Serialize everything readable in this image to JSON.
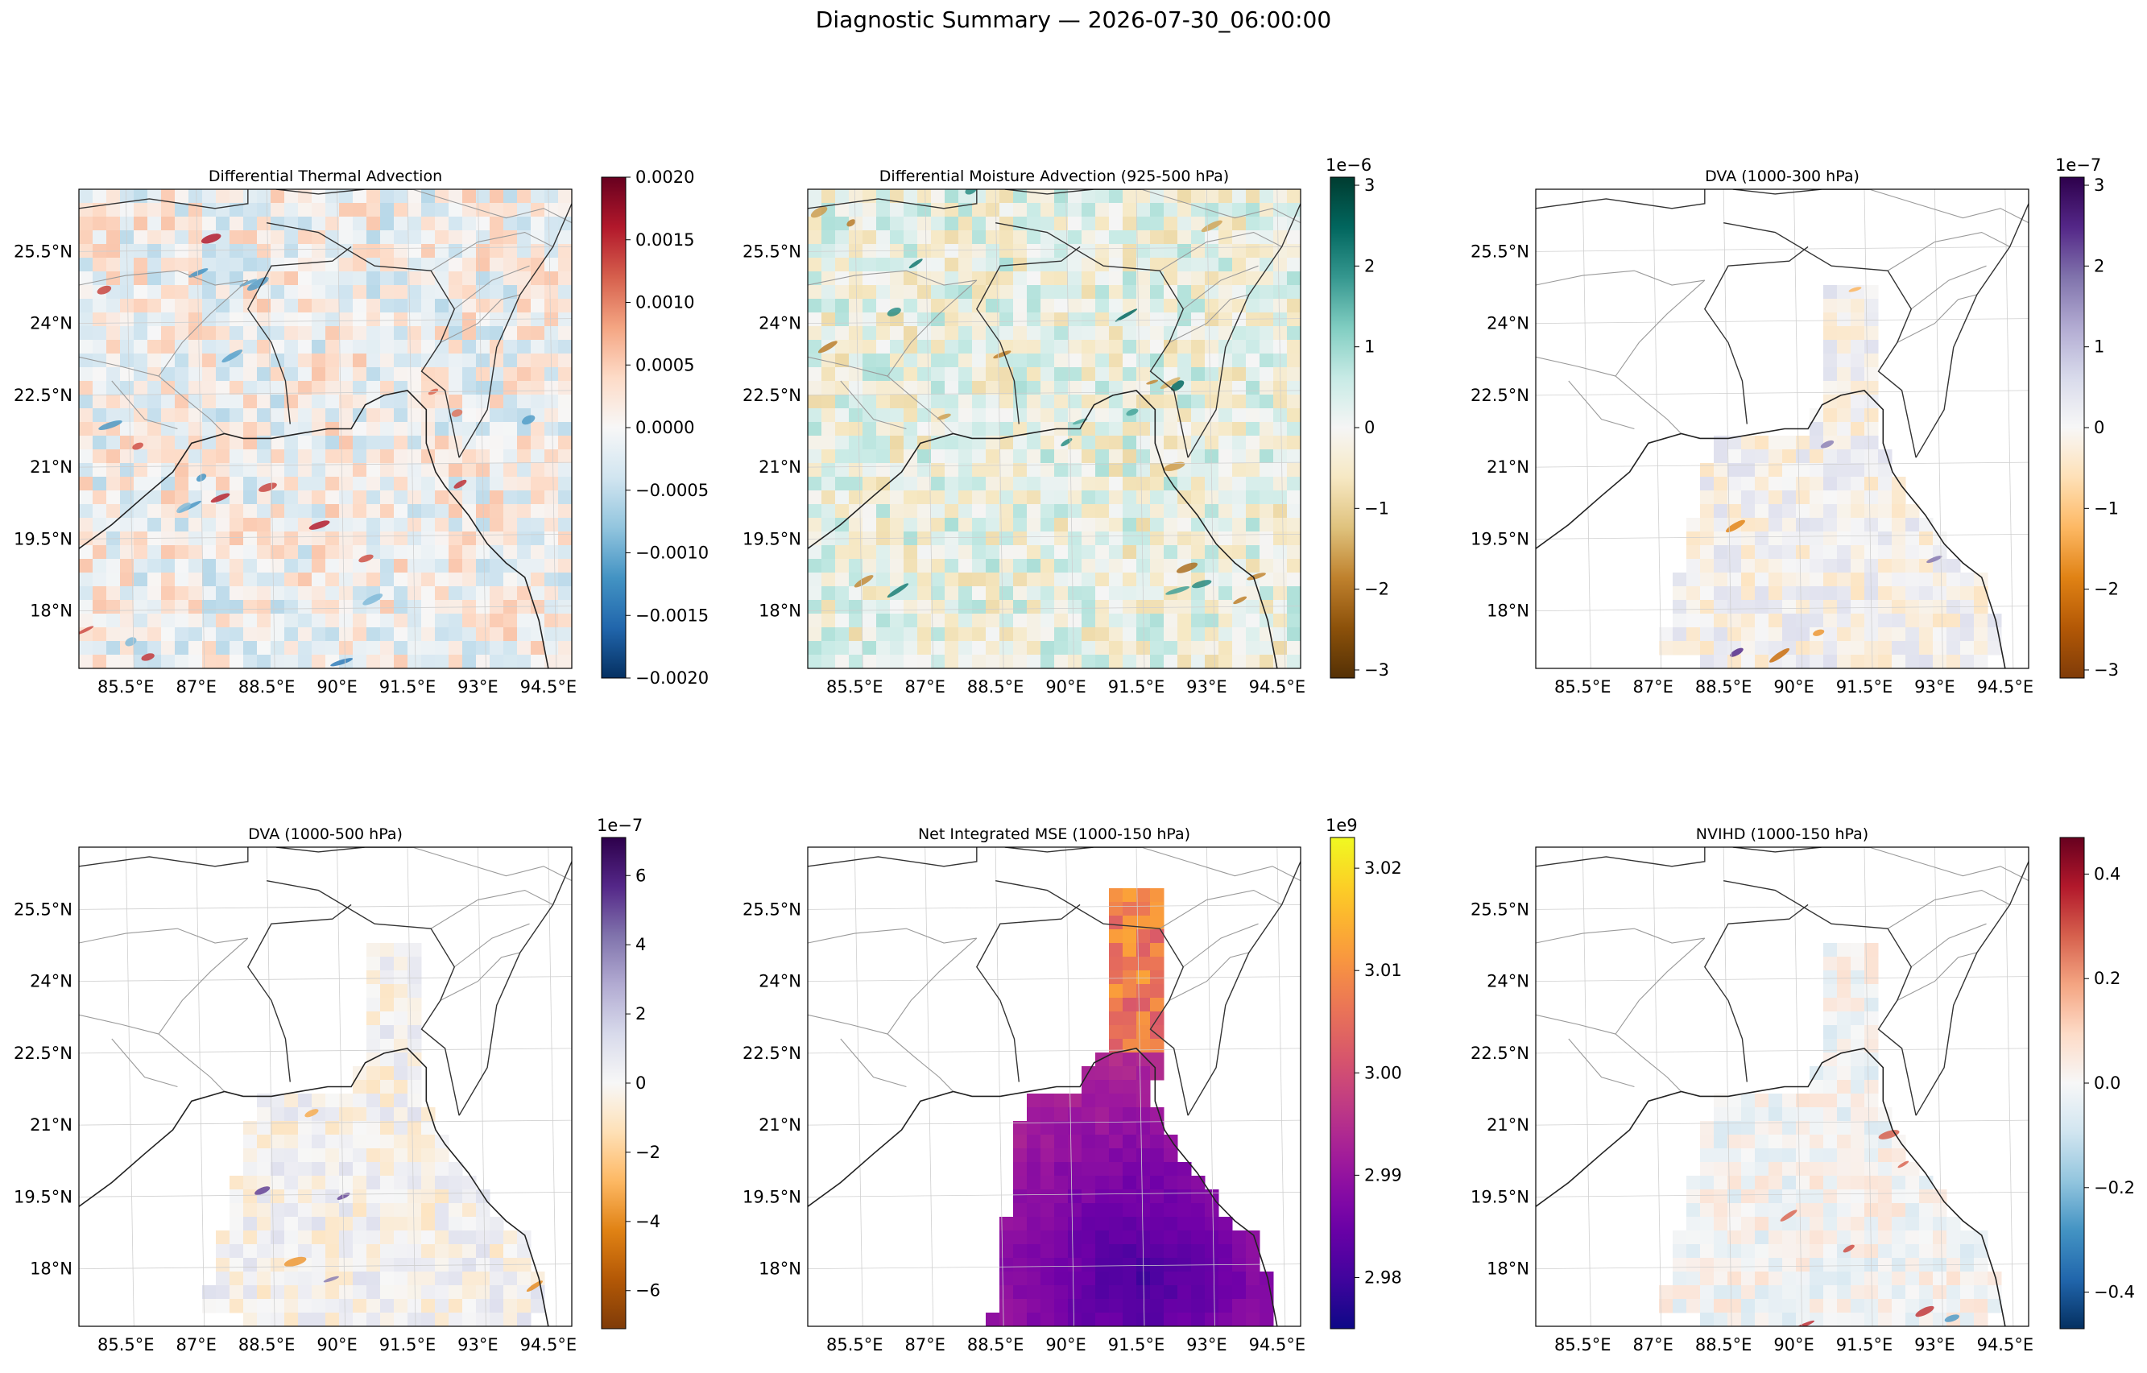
{
  "figure": {
    "title": "Diagnostic Summary — 2026-07-30_06:00:00"
  },
  "chart_data": [
    {
      "type": "heatmap",
      "title": "Differential Thermal Advection",
      "x_ticks": [
        "85.5°E",
        "87°E",
        "88.5°E",
        "90°E",
        "91.5°E",
        "93°E",
        "94.5°E"
      ],
      "y_ticks": [
        "25.5°N",
        "24°N",
        "22.5°N",
        "21°N",
        "19.5°N",
        "18°N"
      ],
      "extent": {
        "lon": [
          84.5,
          95.0
        ],
        "lat": [
          16.8,
          26.8
        ]
      },
      "colormap": "RdBu_r",
      "colorbar": {
        "range": [
          -0.002,
          0.002
        ],
        "multiplier": "",
        "ticks": [
          "0.0020",
          "0.0015",
          "0.0010",
          "0.0005",
          "0.0000",
          "−0.0005",
          "−0.0010",
          "−0.0015",
          "−0.0020"
        ],
        "tick_values": [
          0.002,
          0.0015,
          0.001,
          0.0005,
          0,
          -0.0005,
          -0.001,
          -0.0015,
          -0.002
        ]
      },
      "coverage": "full"
    },
    {
      "type": "heatmap",
      "title": "Differential Moisture Advection (925-500 hPa)",
      "x_ticks": [
        "85.5°E",
        "87°E",
        "88.5°E",
        "90°E",
        "91.5°E",
        "93°E",
        "94.5°E"
      ],
      "y_ticks": [
        "25.5°N",
        "24°N",
        "22.5°N",
        "21°N",
        "19.5°N",
        "18°N"
      ],
      "extent": {
        "lon": [
          84.5,
          95.0
        ],
        "lat": [
          16.8,
          26.8
        ]
      },
      "colormap": "BrBG",
      "colorbar": {
        "range": [
          -3.1,
          3.1
        ],
        "multiplier": "1e−6",
        "ticks": [
          "3",
          "2",
          "1",
          "0",
          "−1",
          "−2",
          "−3"
        ],
        "tick_values": [
          3,
          2,
          1,
          0,
          -1,
          -2,
          -3
        ]
      },
      "coverage": "full"
    },
    {
      "type": "heatmap",
      "title": "DVA (1000-300 hPa)",
      "x_ticks": [
        "85.5°E",
        "87°E",
        "88.5°E",
        "90°E",
        "91.5°E",
        "93°E",
        "94.5°E"
      ],
      "y_ticks": [
        "25.5°N",
        "24°N",
        "22.5°N",
        "21°N",
        "19.5°N",
        "18°N"
      ],
      "extent": {
        "lon": [
          84.5,
          95.0
        ],
        "lat": [
          16.8,
          26.8
        ]
      },
      "colormap": "PuOr",
      "colorbar": {
        "range": [
          -3.1,
          3.1
        ],
        "multiplier": "1e−7",
        "ticks": [
          "3",
          "2",
          "1",
          "0",
          "−1",
          "−2",
          "−3"
        ],
        "tick_values": [
          3,
          2,
          1,
          0,
          -1,
          -2,
          -3
        ]
      },
      "coverage": "bay"
    },
    {
      "type": "heatmap",
      "title": "DVA (1000-500 hPa)",
      "x_ticks": [
        "85.5°E",
        "87°E",
        "88.5°E",
        "90°E",
        "91.5°E",
        "93°E",
        "94.5°E"
      ],
      "y_ticks": [
        "25.5°N",
        "24°N",
        "22.5°N",
        "21°N",
        "19.5°N",
        "18°N"
      ],
      "extent": {
        "lon": [
          84.5,
          95.0
        ],
        "lat": [
          16.8,
          26.8
        ]
      },
      "colormap": "PuOr",
      "colorbar": {
        "range": [
          -7.1,
          7.1
        ],
        "multiplier": "1e−7",
        "ticks": [
          "6",
          "4",
          "2",
          "0",
          "−2",
          "−4",
          "−6"
        ],
        "tick_values": [
          6,
          4,
          2,
          0,
          -2,
          -4,
          -6
        ]
      },
      "coverage": "bay"
    },
    {
      "type": "heatmap",
      "title": "Net Integrated MSE (1000-150 hPa)",
      "x_ticks": [
        "85.5°E",
        "87°E",
        "88.5°E",
        "90°E",
        "91.5°E",
        "93°E",
        "94.5°E"
      ],
      "y_ticks": [
        "25.5°N",
        "24°N",
        "22.5°N",
        "21°N",
        "19.5°N",
        "18°N"
      ],
      "extent": {
        "lon": [
          84.5,
          95.0
        ],
        "lat": [
          16.8,
          26.8
        ]
      },
      "colormap": "plasma",
      "colorbar": {
        "range": [
          2.975,
          3.023
        ],
        "multiplier": "1e9",
        "ticks": [
          "3.02",
          "3.01",
          "3.00",
          "2.99",
          "2.98"
        ],
        "tick_values": [
          3.02,
          3.01,
          3.0,
          2.99,
          2.98
        ]
      },
      "coverage": "mse"
    },
    {
      "type": "heatmap",
      "title": "NVIHD (1000-150 hPa)",
      "x_ticks": [
        "85.5°E",
        "87°E",
        "88.5°E",
        "90°E",
        "91.5°E",
        "93°E",
        "94.5°E"
      ],
      "y_ticks": [
        "25.5°N",
        "24°N",
        "22.5°N",
        "21°N",
        "19.5°N",
        "18°N"
      ],
      "extent": {
        "lon": [
          84.5,
          95.0
        ],
        "lat": [
          16.8,
          26.8
        ]
      },
      "colormap": "RdBu_r",
      "colorbar": {
        "range": [
          -0.47,
          0.47
        ],
        "multiplier": "",
        "ticks": [
          "0.4",
          "0.2",
          "0.0",
          "−0.2",
          "−0.4"
        ],
        "tick_values": [
          0.4,
          0.2,
          0.0,
          -0.2,
          -0.4
        ]
      },
      "coverage": "bay"
    }
  ]
}
